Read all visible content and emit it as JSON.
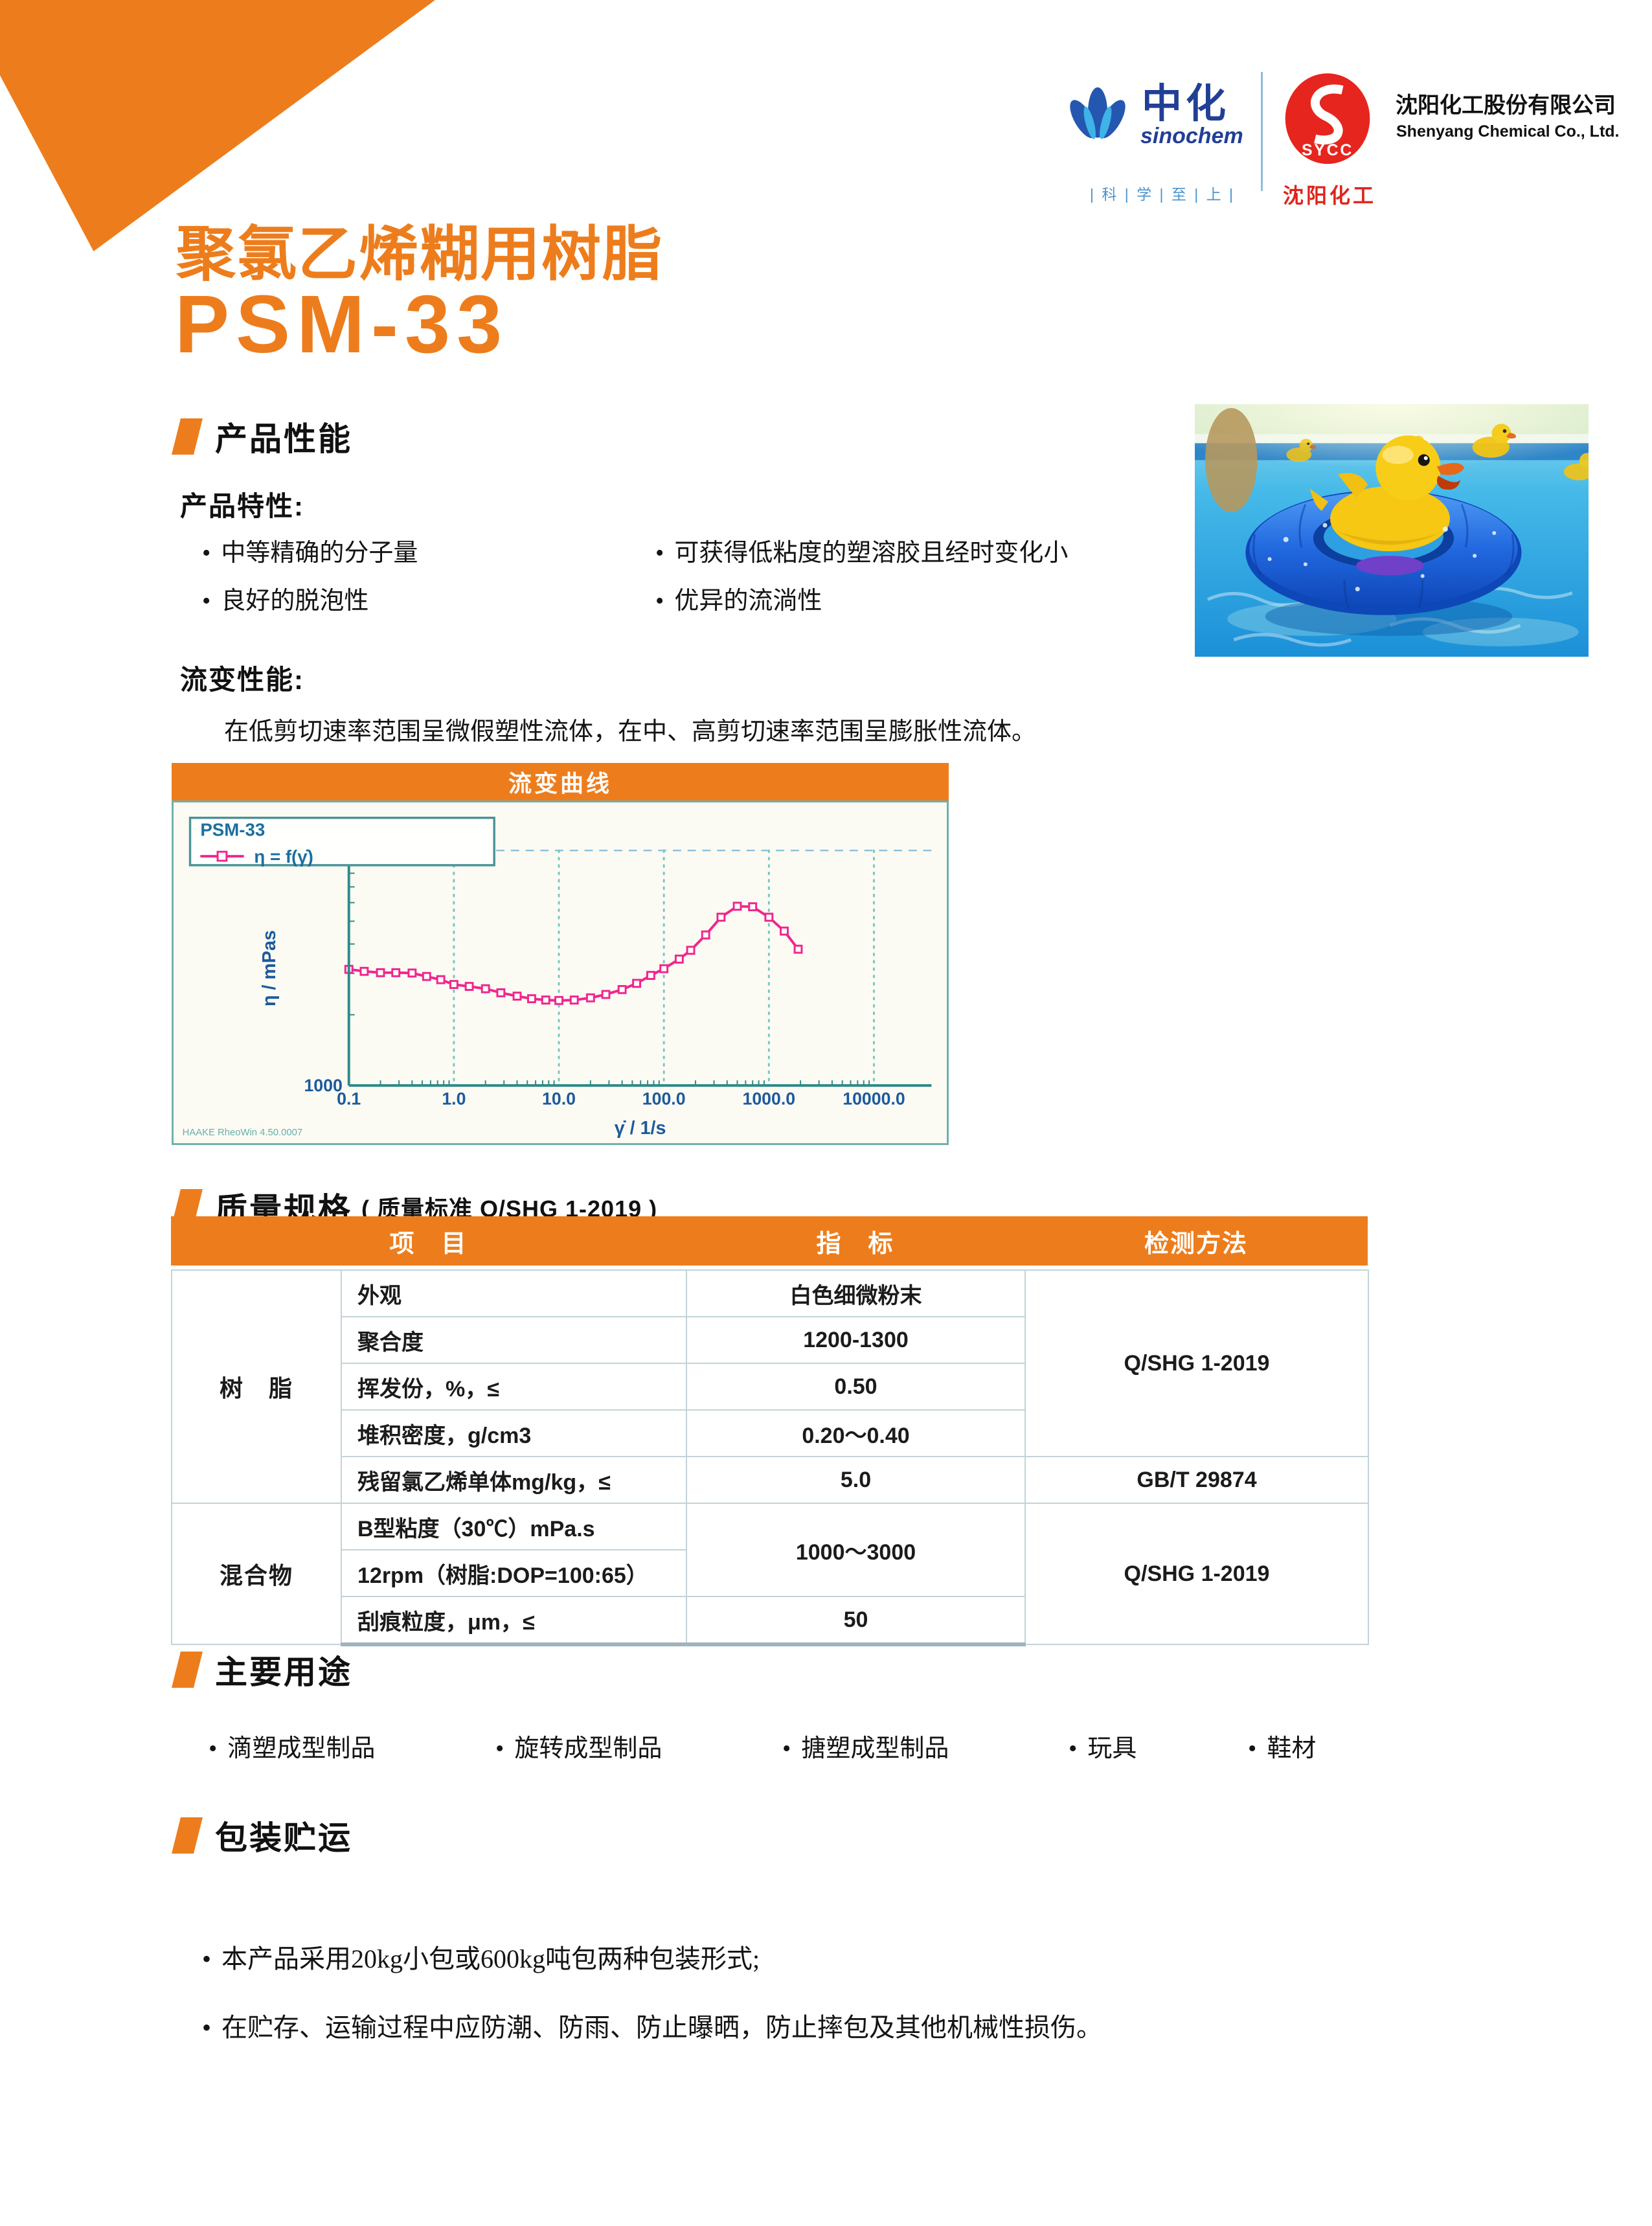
{
  "brand": {
    "sinochem_cn": "中化",
    "sinochem_en": "sinochem",
    "tagline": "| 科 | 学 | 至 | 上 |",
    "sycc_abbr": "SYCC",
    "sycc_cn": "沈阳化工",
    "company_cn": "沈阳化工股份有限公司",
    "company_en": "Shenyang Chemical Co., Ltd."
  },
  "title": {
    "product_type": "聚氯乙烯糊用树脂",
    "product_code": "PSM-33"
  },
  "performance": {
    "section_title": "产品性能",
    "features_label": "产品特性:",
    "features_col1": [
      "中等精确的分子量",
      "良好的脱泡性"
    ],
    "features_col2": [
      "可获得低粘度的塑溶胶且经时变化小",
      "优异的流淌性"
    ],
    "rheology_label": "流变性能:",
    "rheology_text": "在低剪切速率范围呈微假塑性流体，在中、高剪切速率范围呈膨胀性流体。"
  },
  "chart": {
    "panel_title": "流变曲线",
    "legend_title": "PSM-33",
    "legend_series_label": "η = f(γ̇)",
    "ylabel": "η / mPas",
    "xlabel": "γ̇ / 1/s",
    "watermark": "HAAKE RheoWin 4.50.0007"
  },
  "chart_data": {
    "type": "line",
    "title": "流变曲线",
    "xlabel": "γ̇ / 1/s",
    "ylabel": "η / mPas",
    "xscale": "log",
    "yscale": "log",
    "xlim": [
      0.1,
      10000
    ],
    "ylim": [
      1000,
      10000
    ],
    "xticks": [
      "0.1",
      "1.0",
      "10.0",
      "100.0",
      "1000.0",
      "10000.0"
    ],
    "yticks": [
      "1000",
      "10000"
    ],
    "legend_title": "PSM-33",
    "line_color": "#F0268E",
    "grid": true,
    "series": [
      {
        "name": "η = f(γ̇)",
        "x": [
          0.1,
          0.14,
          0.2,
          0.28,
          0.4,
          0.55,
          0.75,
          1.0,
          1.4,
          2.0,
          2.8,
          4.0,
          5.5,
          7.5,
          10,
          14,
          20,
          28,
          40,
          55,
          75,
          100,
          140,
          180,
          250,
          350,
          500,
          700,
          1000,
          1400,
          1900
        ],
        "y": [
          3120,
          3060,
          3020,
          3020,
          3010,
          2910,
          2820,
          2690,
          2640,
          2580,
          2480,
          2400,
          2340,
          2310,
          2300,
          2310,
          2360,
          2440,
          2560,
          2720,
          2940,
          3140,
          3450,
          3760,
          4370,
          5200,
          5790,
          5760,
          5200,
          4540,
          3800
        ]
      }
    ]
  },
  "specs": {
    "section_title": "质量规格",
    "section_subtitle": "( 质量标准 Q/SHG 1-2019 )",
    "col_item": "项　目",
    "col_spec": "指　标",
    "col_method": "检测方法",
    "group1_name": "树　脂",
    "group2_name": "混合物",
    "method_group1": "Q/SHG 1-2019",
    "method_group2": "Q/SHG 1-2019",
    "rows": {
      "r1": {
        "item": "外观",
        "spec": "白色细微粉末"
      },
      "r2": {
        "item": "聚合度",
        "spec": "1200-1300"
      },
      "r3": {
        "item": "挥发份，%，≤",
        "spec": "0.50"
      },
      "r4": {
        "item": "堆积密度，g/cm3",
        "spec": "0.20～0.40"
      },
      "r5": {
        "item": "残留氯乙烯单体mg/kg，≤",
        "spec": "5.0",
        "method": "GB/T 29874"
      },
      "r6": {
        "item": "B型粘度（30℃）mPa.s",
        "spec": "1000～3000"
      },
      "r7": {
        "item": "12rpm（树脂:DOP=100:65）"
      },
      "r8": {
        "item": "刮痕粒度，μm，≤",
        "spec": "50"
      }
    }
  },
  "uses": {
    "section_title": "主要用途",
    "items": [
      "滴塑成型制品",
      "旋转成型制品",
      "搪塑成型制品",
      "玩具",
      "鞋材"
    ]
  },
  "packaging": {
    "section_title": "包装贮运",
    "items": [
      "本产品采用20kg小包或600kg吨包两种包装形式;",
      "在贮存、运输过程中应防潮、防雨、防止曝晒，防止摔包及其他机械性损伤。"
    ]
  },
  "colors": {
    "accent_orange": "#ED7D1C",
    "curve_pink": "#F0268E",
    "axis_teal": "#2E8B8B",
    "tick_label_blue": "#1C5A9E"
  }
}
